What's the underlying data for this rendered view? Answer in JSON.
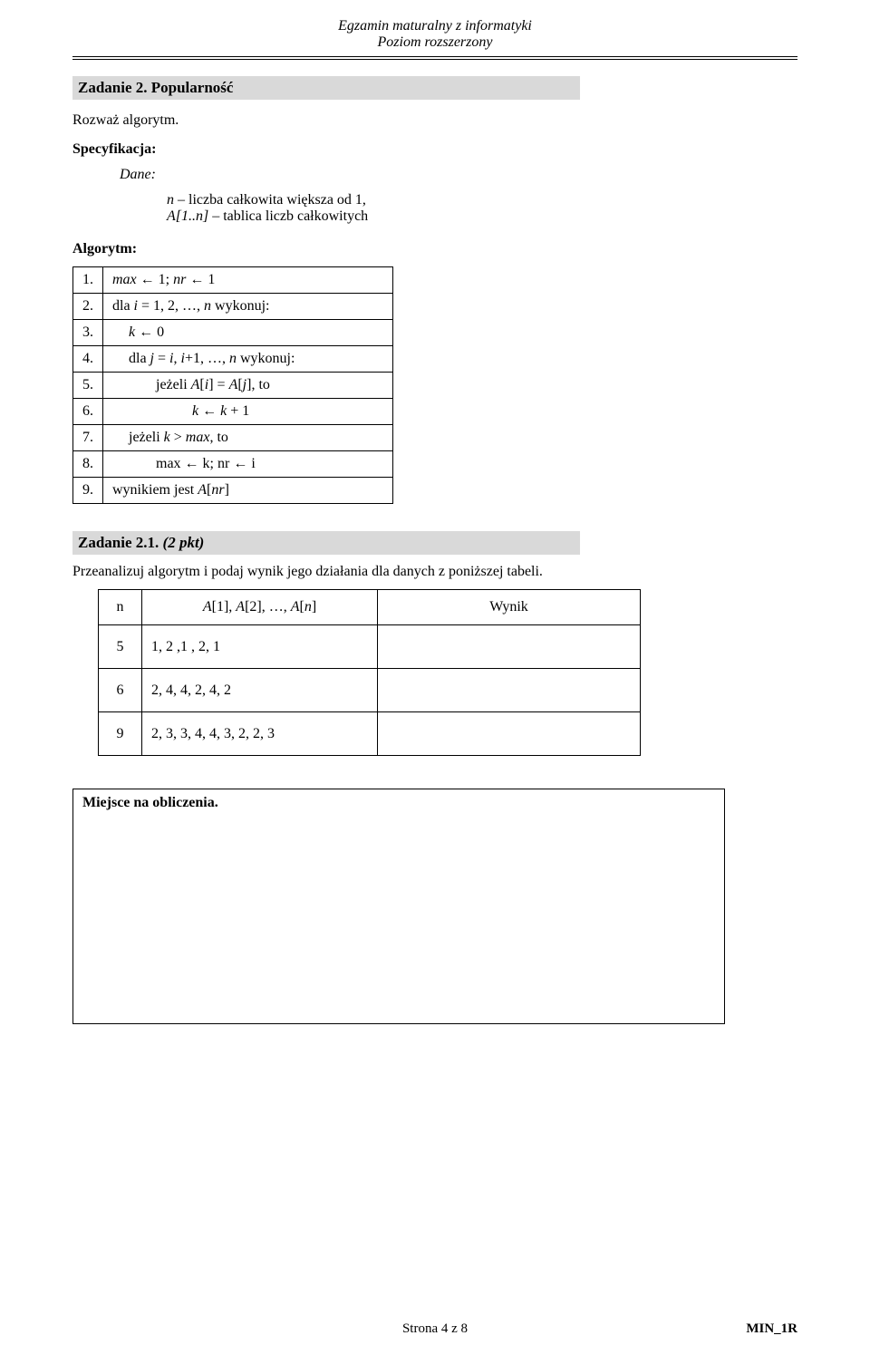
{
  "header": {
    "line1": "Egzamin maturalny z informatyki",
    "line2": "Poziom rozszerzony"
  },
  "task2": {
    "title": "Zadanie 2. Popularność",
    "intro": "Rozważ algorytm.",
    "spec_label": "Specyfikacja:",
    "dane_label": "Dane:",
    "dane_line1_pre": "n",
    "dane_line1_post": " – liczba całkowita większa od 1,",
    "dane_line2_pre": "A[1..n]",
    "dane_line2_post": " – tablica liczb całkowitych",
    "algo_label": "Algorytm:",
    "steps": [
      {
        "n": "1.",
        "html": "<span class='ital'>max</span> ← 1; <span class='ital'>nr</span> ← 1"
      },
      {
        "n": "2.",
        "html": "dla <span class='ital'>i</span> = 1, 2, …, <span class='ital'>n</span> wykonuj:"
      },
      {
        "n": "3.",
        "html": "<span class='step-ind1'><span class='ital'>k</span> ← 0</span>"
      },
      {
        "n": "4.",
        "html": "<span class='step-ind1'>dla <span class='ital'>j</span> = <span class='ital'>i</span>, <span class='ital'>i</span>+1, …, <span class='ital'>n</span> wykonuj:</span>"
      },
      {
        "n": "5.",
        "html": "<span class='step-ind2'>jeżeli <span class='ital'>A</span>[<span class='ital'>i</span>] = <span class='ital'>A</span>[<span class='ital'>j</span>], to</span>"
      },
      {
        "n": "6.",
        "html": "<span class='step-ind3'><span class='ital'>k</span> ← <span class='ital'>k</span> + 1</span>"
      },
      {
        "n": "7.",
        "html": "<span class='step-ind1'>jeżeli <span class='ital'>k</span> &gt; <span class='ital'>max</span>, to</span>"
      },
      {
        "n": "8.",
        "html": "<span class='step-ind2'>max ← k; nr ← i</span>"
      },
      {
        "n": "9.",
        "html": "wynikiem jest <span class='ital'>A</span>[<span class='ital'>nr</span>]"
      }
    ]
  },
  "task21": {
    "title_bold": "Zadanie 2.1.",
    "title_ital": " (2 pkt)",
    "prompt": "Przeanalizuj algorytm i podaj wynik jego działania dla danych z poniższej tabeli.",
    "head_n": "n",
    "head_a_html": "<span class='ital'>A</span>[1], <span class='ital'>A</span>[2], …, <span class='ital'>A</span>[<span class='ital'>n</span>]",
    "head_w": "Wynik",
    "rows": [
      {
        "n": "5",
        "a": "1, 2 ,1 , 2, 1",
        "w": ""
      },
      {
        "n": "6",
        "a": "2, 4, 4, 2, 4, 2",
        "w": ""
      },
      {
        "n": "9",
        "a": "2, 3, 3, 4, 4, 3, 2, 2, 3",
        "w": ""
      }
    ]
  },
  "calc": {
    "label": "Miejsce na obliczenia."
  },
  "footer": {
    "page": "Strona 4 z 8",
    "code": "MIN_1R"
  }
}
